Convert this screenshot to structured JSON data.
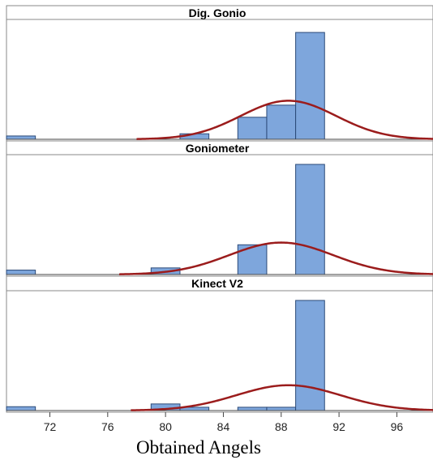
{
  "chart_data": {
    "type": "histogram",
    "xlabel": "Obtained Angels",
    "xlim": [
      69,
      98.5
    ],
    "xticks": [
      72,
      76,
      80,
      84,
      88,
      92,
      96
    ],
    "bin_width": 2,
    "colors": {
      "bar_fill": "#7ea6dc",
      "bar_stroke": "#2b4a78",
      "fit_curve": "#9b1c1c",
      "header_bg": "#ffffff"
    },
    "panels": [
      {
        "title": "Dig. Gonio",
        "ymax": 1.0,
        "bins": [
          {
            "x": 70,
            "count": 0.03
          },
          {
            "x": 82,
            "count": 0.05
          },
          {
            "x": 86,
            "count": 0.2
          },
          {
            "x": 88,
            "count": 0.31
          },
          {
            "x": 90,
            "count": 0.97
          }
        ],
        "fit": {
          "mean": 88.5,
          "sd": 3.3,
          "peak": 0.35
        }
      },
      {
        "title": "Goniometer",
        "ymax": 1.0,
        "bins": [
          {
            "x": 70,
            "count": 0.04
          },
          {
            "x": 80,
            "count": 0.06
          },
          {
            "x": 86,
            "count": 0.27
          },
          {
            "x": 90,
            "count": 1.0
          }
        ],
        "fit": {
          "mean": 88.0,
          "sd": 3.6,
          "peak": 0.29
        }
      },
      {
        "title": "Kinect V2",
        "ymax": 1.0,
        "bins": [
          {
            "x": 70,
            "count": 0.035
          },
          {
            "x": 80,
            "count": 0.06
          },
          {
            "x": 82,
            "count": 0.03
          },
          {
            "x": 86,
            "count": 0.03
          },
          {
            "x": 88,
            "count": 0.03
          },
          {
            "x": 90,
            "count": 1.0
          }
        ],
        "fit": {
          "mean": 88.5,
          "sd": 3.6,
          "peak": 0.23
        }
      }
    ]
  }
}
